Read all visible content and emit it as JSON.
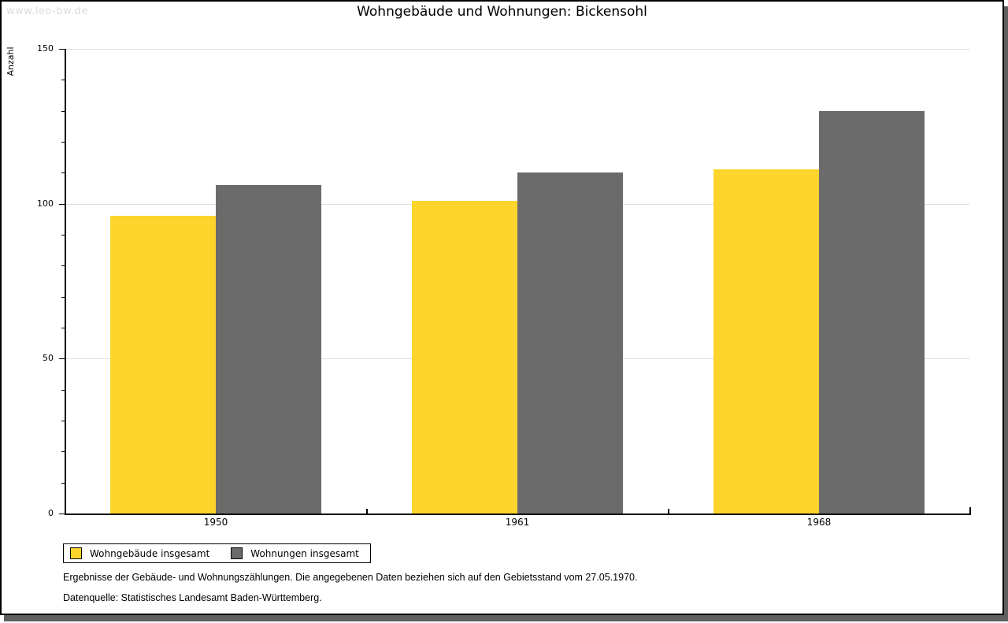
{
  "watermark": "www.leo-bw.de",
  "title": "Wohngebäude und Wohnungen: Bickensohl",
  "chart_data": {
    "type": "bar",
    "title": "Wohngebäude und Wohnungen: Bickensohl",
    "categories": [
      "1950",
      "1961",
      "1968"
    ],
    "series": [
      {
        "name": "Wohngebäude insgesamt",
        "color": "#fcd42c",
        "values": [
          96,
          101,
          111
        ]
      },
      {
        "name": "Wohnungen insgesamt",
        "color": "#6b6b6b",
        "values": [
          106,
          110,
          130
        ]
      }
    ],
    "xlabel": "",
    "ylabel": "Anzahl",
    "ylim": [
      0,
      150
    ],
    "yticks": [
      0,
      50,
      100,
      150
    ],
    "minor_tick_step": 10,
    "grid": true,
    "legend_position": "bottom-left"
  },
  "footnotes": [
    "Ergebnisse der Gebäude- und Wohnungszählungen. Die angegebenen Daten beziehen sich auf den Gebietsstand vom 27.05.1970.",
    "Datenquelle: Statistisches Landesamt Baden-Württemberg."
  ],
  "colors": {
    "bar_yellow": "#fcd42c",
    "bar_gray": "#6b6b6b",
    "gridline": "#dedede",
    "frame_border": "#000000",
    "frame_shadow": "#5f5f5f",
    "watermark": "#dcdcdc"
  }
}
